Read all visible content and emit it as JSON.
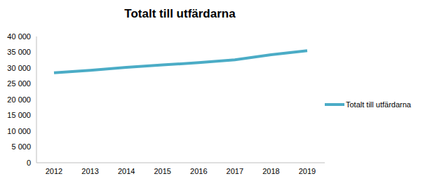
{
  "chart_data": {
    "type": "line",
    "title": "Totalt till utfärdarna",
    "categories": [
      "2012",
      "2013",
      "2014",
      "2015",
      "2016",
      "2017",
      "2018",
      "2019"
    ],
    "series": [
      {
        "name": "Totalt till utfärdarna",
        "color": "#4bacc6",
        "values": [
          28500,
          29300,
          30200,
          31000,
          31700,
          32600,
          34200,
          35500
        ]
      }
    ],
    "ylim": [
      0,
      40000
    ],
    "yticks": [
      0,
      {
        "value": 5000,
        "label": "5 000"
      },
      {
        "value": 10000,
        "label": "10 000"
      },
      {
        "value": 15000,
        "label": "15 000"
      },
      {
        "value": 20000,
        "label": "20 000"
      },
      {
        "value": 25000,
        "label": "25 000"
      },
      {
        "value": 30000,
        "label": "30 000"
      },
      {
        "value": 35000,
        "label": "35 000"
      },
      {
        "value": 40000,
        "label": "40 000"
      }
    ],
    "grid": false,
    "legend": "right"
  }
}
